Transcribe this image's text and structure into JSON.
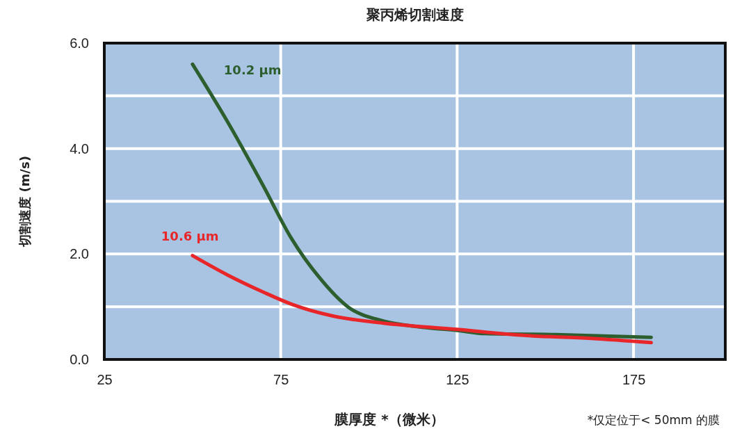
{
  "chart_data": {
    "type": "line",
    "title": "聚丙烯切割速度",
    "xlabel": "膜厚度 *（微米）",
    "ylabel": "切割速度 (m/s)",
    "annotations": [
      "*仅定位于< 50mm 的膜"
    ],
    "xlim": [
      25,
      201
    ],
    "xticks": [
      25,
      75,
      125,
      175
    ],
    "ylim": [
      0,
      6
    ],
    "yticks": [
      {
        "value": 0,
        "label": "0.0"
      },
      {
        "value": 1,
        "label": null
      },
      {
        "value": 2,
        "label": "2.0"
      },
      {
        "value": 3,
        "label": null
      },
      {
        "value": 4,
        "label": "4.0"
      },
      {
        "value": 5,
        "label": null
      },
      {
        "value": 6,
        "label": "6.0"
      }
    ],
    "grid": true,
    "marker": "none",
    "line_style": "solid",
    "series": [
      {
        "name": "10.2 µm",
        "color": "#2d5e2e",
        "x": [
          50,
          60,
          70,
          78,
          86,
          94,
          104,
          114,
          125,
          133,
          153,
          180
        ],
        "values": [
          5.6,
          4.5,
          3.3,
          2.3,
          1.55,
          1.0,
          0.73,
          0.62,
          0.55,
          0.49,
          0.47,
          0.42
        ]
      },
      {
        "name": "10.6 µm",
        "color": "#e8262a",
        "x": [
          50,
          60,
          70,
          78,
          90,
          104,
          125,
          143,
          163,
          180
        ],
        "values": [
          1.97,
          1.6,
          1.28,
          1.05,
          0.82,
          0.69,
          0.57,
          0.46,
          0.4,
          0.32
        ]
      }
    ]
  }
}
